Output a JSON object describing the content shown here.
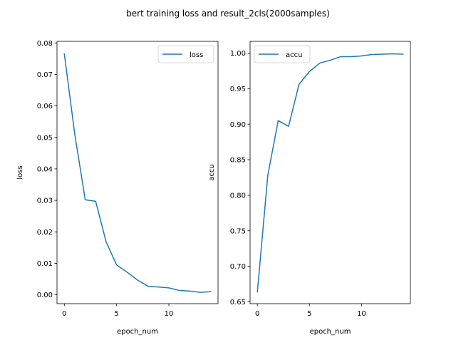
{
  "figure_title": "bert training loss and result_2cls(2000samples)",
  "chart_data": [
    {
      "type": "line",
      "xlabel": "epoch_num",
      "ylabel": "loss",
      "xlim": [
        -0.7,
        14.7
      ],
      "ylim": [
        -0.0028,
        0.0805
      ],
      "xticks": [
        0,
        5,
        10
      ],
      "xtick_labels": [
        "0",
        "5",
        "10"
      ],
      "yticks": [
        0.0,
        0.01,
        0.02,
        0.03,
        0.04,
        0.05,
        0.06,
        0.07,
        0.08
      ],
      "ytick_labels": [
        "0.00",
        "0.01",
        "0.02",
        "0.03",
        "0.04",
        "0.05",
        "0.06",
        "0.07",
        "0.08"
      ],
      "grid": false,
      "legend": "top-right",
      "series": [
        {
          "name": "loss",
          "color": "#1f77b4",
          "x": [
            0,
            1,
            2,
            3,
            4,
            5,
            6,
            7,
            8,
            9,
            10,
            11,
            12,
            13,
            14
          ],
          "y": [
            0.0765,
            0.051,
            0.0302,
            0.0297,
            0.0168,
            0.0095,
            0.0072,
            0.0047,
            0.0027,
            0.0025,
            0.0022,
            0.0014,
            0.0012,
            0.0008,
            0.001
          ]
        }
      ]
    },
    {
      "type": "line",
      "xlabel": "epoch_num",
      "ylabel": "accu",
      "xlim": [
        -0.7,
        14.7
      ],
      "ylim": [
        0.6475,
        1.0165
      ],
      "xticks": [
        0,
        5,
        10
      ],
      "xtick_labels": [
        "0",
        "5",
        "10"
      ],
      "yticks": [
        0.65,
        0.7,
        0.75,
        0.8,
        0.85,
        0.9,
        0.95,
        1.0
      ],
      "ytick_labels": [
        "0.65",
        "0.70",
        "0.75",
        "0.80",
        "0.85",
        "0.90",
        "0.95",
        "1.00"
      ],
      "grid": false,
      "legend": "top-left",
      "series": [
        {
          "name": "accu",
          "color": "#1f77b4",
          "x": [
            0,
            1,
            2,
            3,
            4,
            5,
            6,
            7,
            8,
            9,
            10,
            11,
            12,
            13,
            14
          ],
          "y": [
            0.664,
            0.828,
            0.905,
            0.897,
            0.956,
            0.974,
            0.986,
            0.99,
            0.995,
            0.995,
            0.996,
            0.998,
            0.9985,
            0.999,
            0.9985
          ]
        }
      ]
    }
  ]
}
